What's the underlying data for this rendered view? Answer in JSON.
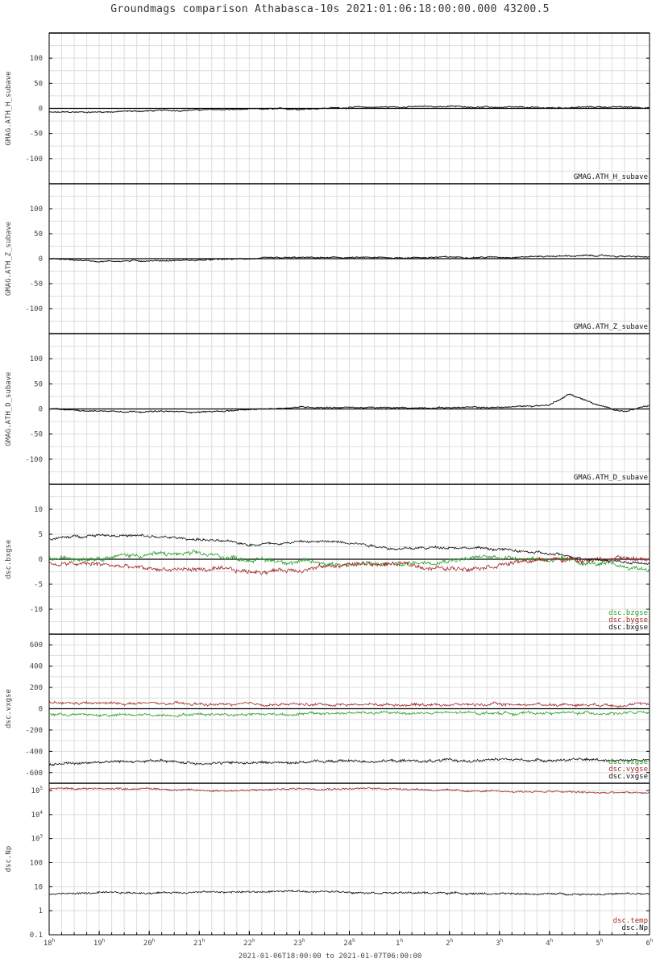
{
  "title": "Groundmags comparison Athabasca-10s 2021:01:06:18:00:00.000 43200.5",
  "footer": "2021-01-06T18:00:00 to 2021-01-07T06:00:00",
  "colors": {
    "black": "#111111",
    "red": "#a52a2a",
    "green": "#2ca02c",
    "grid": "#dddddd",
    "axis": "#000000"
  },
  "chart_data": [
    {
      "type": "line",
      "ylabel": "GMAG.ATH_H_subave",
      "ylim": [
        -150,
        150
      ],
      "yticks": [
        100,
        50,
        0,
        -50,
        -100
      ],
      "grid": true,
      "legend_placement": "bottom-right",
      "x": [
        "18h",
        "19h",
        "20h",
        "21h",
        "22h",
        "23h",
        "24h",
        "1h",
        "2h",
        "3h",
        "4h",
        "5h",
        "6h"
      ],
      "series": [
        {
          "name": "GMAG.ATH_H_subave",
          "color": "black",
          "values": [
            -8,
            -7,
            -5,
            -3,
            -2,
            -1,
            2,
            3,
            4,
            2,
            1,
            3,
            2
          ]
        }
      ]
    },
    {
      "type": "line",
      "ylabel": "GMAG.ATH_Z_subave",
      "ylim": [
        -150,
        150
      ],
      "yticks": [
        100,
        50,
        0,
        -50,
        -100
      ],
      "grid": true,
      "legend_placement": "bottom-right",
      "x": [
        "18h",
        "19h",
        "20h",
        "21h",
        "22h",
        "23h",
        "24h",
        "1h",
        "2h",
        "3h",
        "4h",
        "5h",
        "6h"
      ],
      "series": [
        {
          "name": "GMAG.ATH_Z_subave",
          "color": "black",
          "values": [
            0,
            -5,
            -4,
            -3,
            0,
            2,
            2,
            2,
            3,
            3,
            5,
            6,
            3
          ]
        }
      ]
    },
    {
      "type": "line",
      "ylabel": "GMAG.ATH_D_subave",
      "ylim": [
        -150,
        150
      ],
      "yticks": [
        100,
        50,
        0,
        -50,
        -100
      ],
      "grid": true,
      "legend_placement": "bottom-right",
      "x": [
        "18h",
        "19h",
        "20h",
        "21h",
        "22h",
        "23h",
        "24h",
        "1h",
        "2h",
        "3h",
        "4h",
        "4.4h",
        "5h",
        "5.5h",
        "6h"
      ],
      "series": [
        {
          "name": "GMAG.ATH_D_subave",
          "color": "black",
          "values": [
            0,
            -4,
            -5,
            -6,
            -2,
            4,
            3,
            2,
            3,
            3,
            8,
            30,
            6,
            -5,
            6
          ]
        }
      ]
    },
    {
      "type": "line",
      "ylabel": "dsc.bxgse",
      "ylim": [
        -15,
        15
      ],
      "yticks": [
        10,
        5,
        0,
        -5,
        -10
      ],
      "grid": true,
      "legend_placement": "bottom-right",
      "x": [
        "18h",
        "19h",
        "20h",
        "21h",
        "22h",
        "23h",
        "24h",
        "1h",
        "2h",
        "3h",
        "4h",
        "5h",
        "6h"
      ],
      "series": [
        {
          "name": "dsc.bzgse",
          "color": "green",
          "values": [
            0,
            0.5,
            1,
            1,
            0,
            -0.5,
            -1,
            -1,
            0,
            0.5,
            0,
            -1,
            -2
          ]
        },
        {
          "name": "dsc.bygse",
          "color": "red",
          "values": [
            -1,
            -1,
            -2,
            -2,
            -2.5,
            -2,
            -1,
            -1,
            -2,
            -1,
            0,
            0,
            0
          ]
        },
        {
          "name": "dsc.bxgse",
          "color": "black",
          "values": [
            4,
            5,
            4.5,
            4,
            3,
            3.5,
            3.5,
            2,
            2.5,
            2,
            1,
            0,
            -1
          ]
        }
      ]
    },
    {
      "type": "line",
      "ylabel": "dsc.vxgse",
      "ylim": [
        -700,
        700
      ],
      "yticks": [
        600,
        400,
        200,
        0,
        -200,
        -400,
        -600
      ],
      "grid": true,
      "legend_placement": "bottom-right",
      "x": [
        "18h",
        "19h",
        "20h",
        "21h",
        "22h",
        "23h",
        "24h",
        "1h",
        "2h",
        "3h",
        "4h",
        "5h",
        "6h"
      ],
      "series": [
        {
          "name": "dsc.vzgse",
          "color": "green",
          "values": [
            -50,
            -60,
            -60,
            -50,
            -50,
            -50,
            -40,
            -40,
            -40,
            -40,
            -40,
            -40,
            -40
          ]
        },
        {
          "name": "dsc.vygse",
          "color": "red",
          "values": [
            50,
            50,
            50,
            40,
            40,
            40,
            40,
            40,
            40,
            40,
            40,
            40,
            40
          ]
        },
        {
          "name": "dsc.vxgse",
          "color": "black",
          "values": [
            -520,
            -500,
            -490,
            -510,
            -510,
            -500,
            -490,
            -490,
            -490,
            -480,
            -480,
            -480,
            -480
          ]
        }
      ]
    },
    {
      "type": "line",
      "ylabel": "dsc.Np",
      "ylim": [
        0.1,
        200000
      ],
      "yscale": "log",
      "yticks": [
        "10^5",
        "10^4",
        "10^3",
        "100",
        "10",
        "1",
        "0.1"
      ],
      "grid": true,
      "legend_placement": "bottom-right",
      "x": [
        "18h",
        "19h",
        "20h",
        "21h",
        "22h",
        "23h",
        "24h",
        "1h",
        "2h",
        "3h",
        "4h",
        "5h",
        "6h"
      ],
      "series": [
        {
          "name": "dsc.temp",
          "color": "red",
          "values": [
            120000,
            120000,
            120000,
            100000,
            100000,
            120000,
            120000,
            120000,
            100000,
            90000,
            90000,
            80000,
            80000
          ]
        },
        {
          "name": "dsc.Np",
          "color": "black",
          "values": [
            5,
            5.5,
            5.5,
            6,
            6,
            6.5,
            6,
            5.5,
            5.5,
            5,
            5,
            5,
            5
          ]
        }
      ]
    }
  ],
  "xaxis": {
    "tick_labels": [
      "18",
      "19",
      "20",
      "21",
      "22",
      "23",
      "24",
      "1",
      "2",
      "3",
      "4",
      "5",
      "6"
    ],
    "tick_suffix": "h"
  }
}
